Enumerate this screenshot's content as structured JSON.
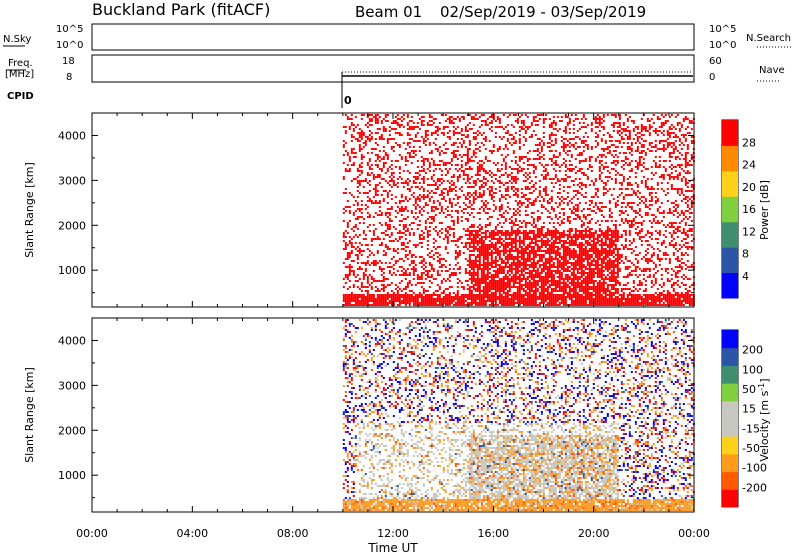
{
  "header": {
    "station": "Buckland Park (fitACF)",
    "beam": "Beam 01",
    "date_range": "02/Sep/2019 - 03/Sep/2019"
  },
  "noise_panel": {
    "left_label": "N.Sky",
    "left_ticks": [
      "10^5",
      "10^0"
    ],
    "right_ticks": [
      "10^5",
      "10^0"
    ],
    "right_label": "N.Search"
  },
  "freq_panel": {
    "left_label_1": "Freq.",
    "left_label_2": "[MHz]",
    "left_ticks": [
      "18",
      "8"
    ],
    "right_ticks": [
      "60",
      "0"
    ],
    "right_label": "Nave"
  },
  "cpid": {
    "label": "CPID",
    "value": "0"
  },
  "colors": {
    "power_scale": [
      "#0000ff",
      "#2c55a8",
      "#3f8f6f",
      "#7fcf3f",
      "#ffd21a",
      "#ff8a00",
      "#ff0000"
    ],
    "velocity_scale": [
      "#ff0000",
      "#ff5a00",
      "#ff9a1a",
      "#ffd21a",
      "#c8c8c0",
      "#c8c8c0",
      "#7fcf3f",
      "#3f8f6f",
      "#2c55a8",
      "#0000ff"
    ]
  },
  "chart_data": [
    {
      "type": "heatmap",
      "panel": "power",
      "xlabel": "Time UT",
      "ylabel": "Slant Range [km]",
      "x_ticks": [
        "00:00",
        "04:00",
        "08:00",
        "12:00",
        "16:00",
        "20:00",
        "00:00"
      ],
      "xlim": [
        0,
        24
      ],
      "y_ticks": [
        "4000",
        "3000",
        "2000",
        "1000"
      ],
      "ylim": [
        180,
        4500
      ],
      "data_start_hour": 10,
      "colorbar": {
        "label": "Power [dB]",
        "ticks": [
          "28",
          "24",
          "20",
          "16",
          "12",
          "8",
          "4"
        ],
        "range": [
          0,
          30
        ]
      }
    },
    {
      "type": "heatmap",
      "panel": "velocity",
      "xlabel": "Time UT",
      "ylabel": "Slant Range [km]",
      "x_ticks": [
        "00:00",
        "04:00",
        "08:00",
        "12:00",
        "16:00",
        "20:00",
        "00:00"
      ],
      "xlim": [
        0,
        24
      ],
      "y_ticks": [
        "4000",
        "3000",
        "2000",
        "1000"
      ],
      "ylim": [
        180,
        4500
      ],
      "data_start_hour": 10,
      "colorbar": {
        "label": "Velocity [m s-1]",
        "ticks": [
          "200",
          "100",
          "50",
          "15",
          "-15",
          "-50",
          "-100",
          "-200"
        ],
        "range": [
          -250,
          250
        ]
      }
    }
  ],
  "x_axis": {
    "label": "Time UT",
    "ticks": [
      "00:00",
      "04:00",
      "08:00",
      "12:00",
      "16:00",
      "20:00",
      "00:00"
    ]
  }
}
